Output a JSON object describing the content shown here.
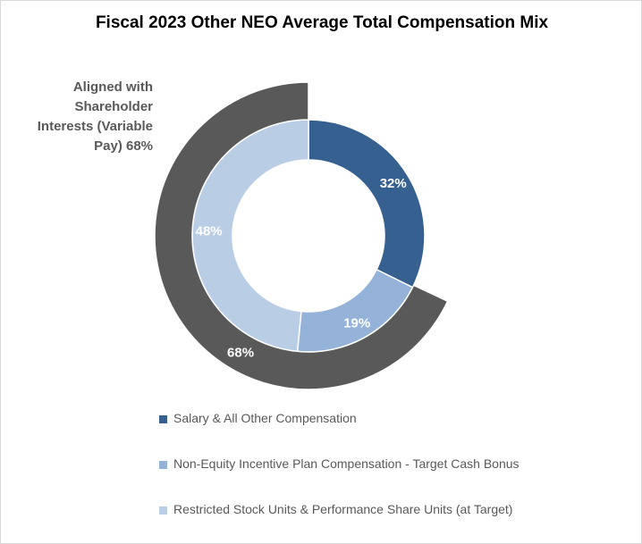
{
  "chart_data": {
    "type": "pie",
    "subtype": "nested-donut",
    "title": "Fiscal 2023 Other NEO Average Total Compensation Mix",
    "inner_ring": [
      {
        "name": "Salary & All Other Compensation",
        "value": 32,
        "label": "32%",
        "color": "#35608f"
      },
      {
        "name": "Non-Equity Incentive Plan Compensation - Target Cash Bonus",
        "value": 19,
        "label": "19%",
        "color": "#95b3d9"
      },
      {
        "name": "Restricted Stock Units & Performance Share Units (at Target)",
        "value": 48,
        "label": "48%",
        "color": "#b9cde5"
      }
    ],
    "outer_ring": [
      {
        "name": "Aligned with Shareholder Interests (Variable Pay)",
        "value": 68,
        "label": "68%",
        "color": "#595959"
      }
    ],
    "outer_note": "Aligned with Shareholder Interests (Variable Pay) 68%",
    "legend": {
      "position": "bottom",
      "items": [
        {
          "label": "Salary & All Other Compensation",
          "color": "#35608f"
        },
        {
          "label": "Non-Equity Incentive Plan Compensation - Target Cash Bonus",
          "color": "#95b3d9"
        },
        {
          "label": "Restricted Stock Units & Performance Share Units (at Target)",
          "color": "#b9cde5"
        }
      ]
    }
  }
}
